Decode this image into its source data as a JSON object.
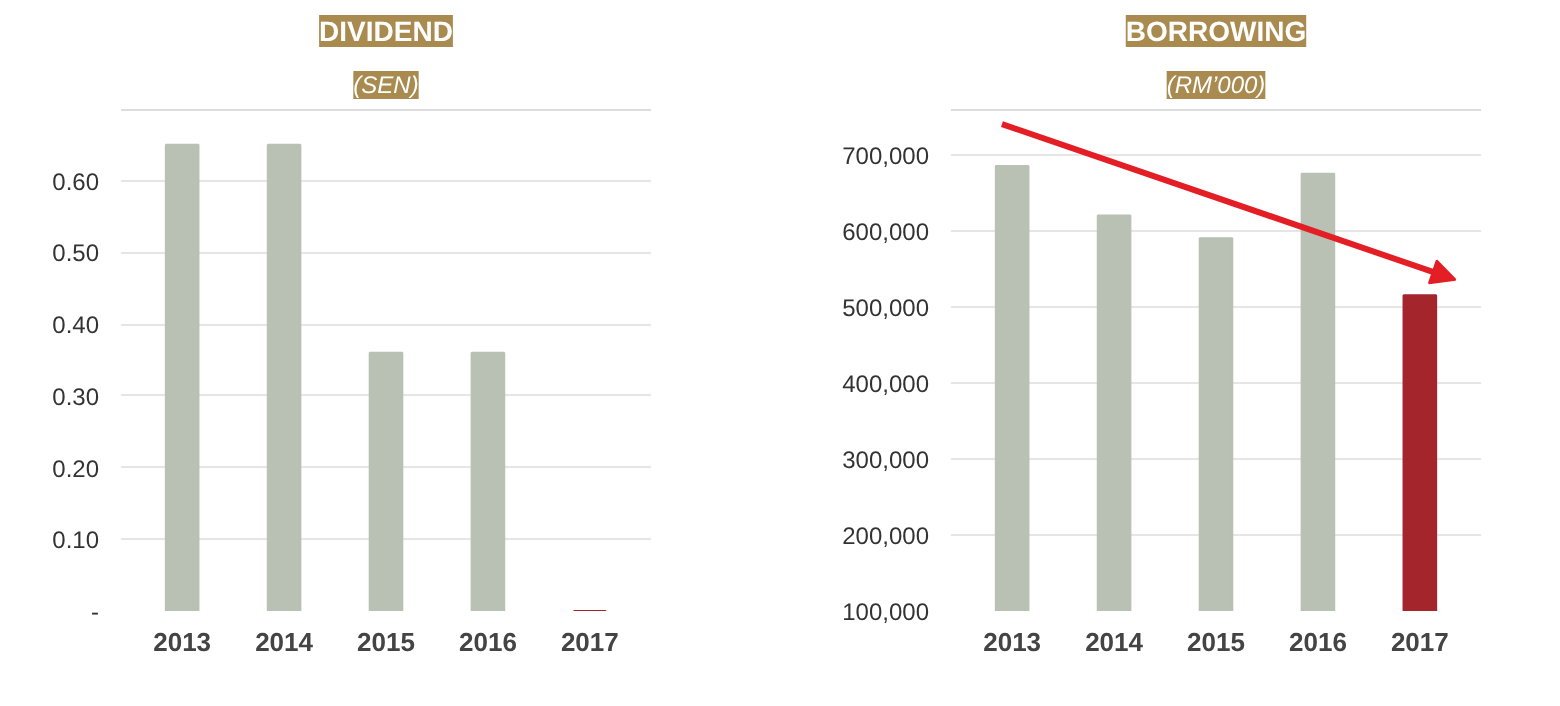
{
  "chart_data": [
    {
      "type": "bar",
      "title": "DIVIDEND",
      "subtitle": "(SEN)",
      "categories": [
        "2013",
        "2014",
        "2015",
        "2016",
        "2017"
      ],
      "values": [
        0.65,
        0.65,
        0.36,
        0.36,
        0.0
      ],
      "colors": [
        "#b9c0b4",
        "#b9c0b4",
        "#b9c0b4",
        "#b9c0b4",
        "#a4262c"
      ],
      "ylim": [
        0,
        0.7
      ],
      "yticks": [
        {
          "value": 0,
          "label": "-"
        },
        {
          "value": 0.1,
          "label": "0.10"
        },
        {
          "value": 0.2,
          "label": "0.20"
        },
        {
          "value": 0.3,
          "label": "0.30"
        },
        {
          "value": 0.4,
          "label": "0.40"
        },
        {
          "value": 0.5,
          "label": "0.50"
        },
        {
          "value": 0.6,
          "label": "0.60"
        },
        {
          "value": 0.7,
          "label": null
        }
      ],
      "grid": "y"
    },
    {
      "type": "bar",
      "title": "BORROWING",
      "subtitle": "(RM’000)",
      "categories": [
        "2013",
        "2014",
        "2015",
        "2016",
        "2017"
      ],
      "values": [
        685000,
        620000,
        590000,
        675000,
        515000
      ],
      "colors": [
        "#b9c0b4",
        "#b9c0b4",
        "#b9c0b4",
        "#b9c0b4",
        "#a4262c"
      ],
      "ylim": [
        100000,
        760000
      ],
      "yticks": [
        {
          "value": 100000,
          "label": "100,000"
        },
        {
          "value": 200000,
          "label": "200,000"
        },
        {
          "value": 300000,
          "label": "300,000"
        },
        {
          "value": 400000,
          "label": "400,000"
        },
        {
          "value": 500000,
          "label": "500,000"
        },
        {
          "value": 600000,
          "label": "600,000"
        },
        {
          "value": 700000,
          "label": "700,000"
        },
        {
          "value": 760000,
          "label": null
        }
      ],
      "grid": "y"
    }
  ]
}
